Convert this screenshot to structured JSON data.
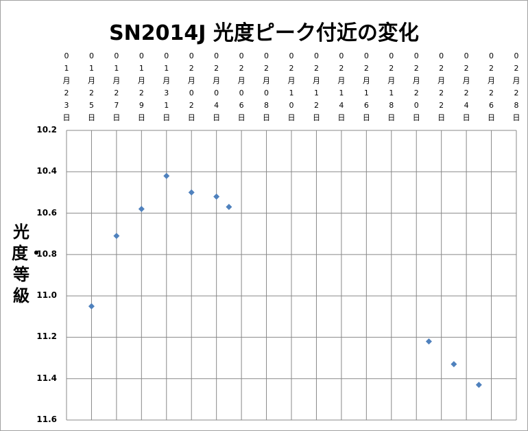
{
  "chart_data": {
    "type": "scatter",
    "title": "SN2014J 光度ピーク付近の変化",
    "y_label": "光度・等級",
    "x": [
      "01月25日",
      "01月27日",
      "01月29日",
      "01月31日",
      "02月02日",
      "02月04日",
      "02月05日",
      "02月21日",
      "02月23日",
      "02月25日"
    ],
    "series": [
      {
        "color": "#4f81bd",
        "values": [
          11.05,
          10.71,
          10.58,
          10.42,
          10.5,
          10.52,
          10.57,
          11.22,
          11.33,
          11.43
        ]
      }
    ],
    "xlim": [
      "01月23日",
      "02月28日"
    ],
    "xticks": [
      "01月23日",
      "01月25日",
      "01月27日",
      "01月29日",
      "01月31日",
      "02月02日",
      "02月04日",
      "02月06日",
      "02月08日",
      "02月10日",
      "02月12日",
      "02月14日",
      "02月16日",
      "02月18日",
      "02月20日",
      "02月22日",
      "02月24日",
      "02月26日",
      "02月28日"
    ],
    "ylim": [
      10.2,
      11.6
    ],
    "y_reversed": true,
    "yticks": [
      10.2,
      10.4,
      10.6,
      10.8,
      {
        "value": 11,
        "label": "11.0"
      },
      11.2,
      11.4,
      11.6
    ],
    "grid": true
  }
}
